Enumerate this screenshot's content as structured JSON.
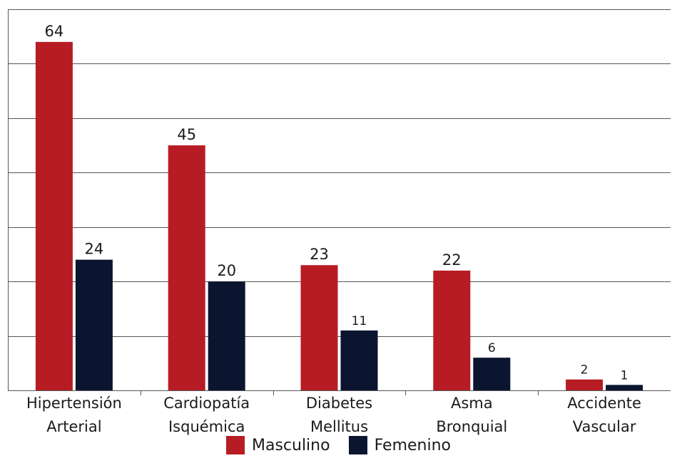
{
  "chart_data": {
    "type": "bar",
    "categories": [
      [
        "Hipertensión",
        "Arterial"
      ],
      [
        "Cardiopatía",
        "Isquémica"
      ],
      [
        "Diabetes",
        "Mellitus"
      ],
      [
        "Asma",
        "Bronquial"
      ],
      [
        "Accidente",
        "Vascular"
      ]
    ],
    "series": [
      {
        "name": "Masculino",
        "values": [
          64,
          45,
          23,
          22,
          2
        ],
        "color": "#b71c25"
      },
      {
        "name": "Femenino",
        "values": [
          24,
          20,
          11,
          6,
          1
        ],
        "color": "#0b1530"
      }
    ],
    "ylim": [
      0,
      70
    ],
    "grid": true,
    "legend_position": "bottom"
  }
}
